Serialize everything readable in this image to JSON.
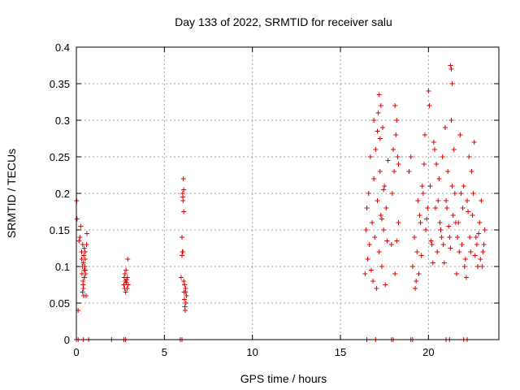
{
  "chart_data": {
    "type": "scatter",
    "title": "Day 133 of 2022, SRMTID for receiver salu",
    "xlabel": "GPS time / hours",
    "ylabel": "SRMTID / TECUs",
    "xlim": [
      0,
      24
    ],
    "ylim": [
      0,
      0.4
    ],
    "xticks": [
      "0",
      "5",
      "10",
      "15",
      "20"
    ],
    "yticks": [
      "0",
      "0.05",
      "0.1",
      "0.15",
      "0.2",
      "0.25",
      "0.3",
      "0.35",
      "0.4"
    ],
    "grid": true,
    "marker": "plus",
    "color": "#dd0000",
    "series": [
      {
        "x": [
          0.02,
          0.04,
          0.1,
          0.15,
          0.2,
          0.25,
          0.3,
          0.3,
          0.32,
          0.34,
          0.36,
          0.38,
          0.4,
          0.4,
          0.42,
          0.42,
          0.44,
          0.45,
          0.46,
          0.48,
          0.5,
          0.5,
          0.52,
          0.55,
          0.58,
          0.6,
          0.35,
          0.38,
          0.45,
          0.5,
          2.7,
          2.72,
          2.74,
          2.76,
          2.78,
          2.8,
          2.82,
          2.84,
          2.86,
          2.88,
          2.9,
          2.92,
          2.94,
          5.95,
          6.0,
          6.0,
          6.02,
          6.04,
          6.06,
          6.08,
          6.1,
          6.12,
          6.14,
          6.16,
          6.18,
          6.2,
          6.22,
          6.25,
          6.05,
          6.1,
          6.15,
          6.2,
          6.1,
          6.05,
          16.4,
          16.45,
          16.5,
          16.55,
          16.6,
          16.65,
          16.7,
          16.75,
          16.8,
          16.85,
          16.9,
          16.95,
          17.0,
          17.05,
          17.1,
          17.15,
          17.2,
          17.25,
          17.3,
          17.35,
          17.4,
          17.45,
          17.5,
          17.55,
          17.6,
          17.65,
          17.7,
          17.2,
          17.3,
          16.9,
          17.1,
          17.25,
          17.35,
          17.45,
          17.9,
          17.95,
          18.0,
          18.05,
          18.1,
          18.15,
          18.2,
          18.25,
          18.3,
          18.1,
          18.2,
          18.3,
          18.9,
          19.0,
          19.1,
          19.2,
          19.3,
          19.4,
          19.5,
          19.6,
          19.7,
          19.8,
          19.9,
          20.0,
          20.1,
          20.2,
          20.3,
          20.4,
          20.5,
          20.6,
          20.7,
          20.8,
          20.9,
          21.0,
          21.1,
          21.2,
          21.3,
          21.4,
          21.5,
          21.6,
          21.7,
          21.8,
          21.9,
          22.0,
          22.1,
          22.2,
          22.3,
          22.4,
          22.5,
          22.6,
          22.7,
          22.8,
          22.9,
          23.0,
          23.1,
          23.2,
          19.25,
          19.45,
          19.65,
          19.85,
          20.05,
          20.25,
          20.45,
          20.65,
          20.85,
          21.05,
          21.25,
          21.45,
          21.65,
          21.85,
          22.05,
          22.25,
          22.45,
          22.65,
          22.85,
          23.05,
          19.35,
          19.55,
          19.75,
          19.95,
          20.15,
          20.35,
          20.55,
          20.75,
          20.95,
          21.15,
          21.35,
          21.55,
          21.75,
          21.95,
          22.15,
          22.35,
          22.55,
          22.75,
          22.95,
          23.15,
          21.25,
          21.3,
          21.35,
          0.0,
          0.1,
          0.4,
          0.7,
          2.0,
          2.7,
          2.8,
          5.9,
          6.0,
          16.5,
          17.0,
          17.9,
          18.0,
          19.0,
          19.1,
          21.0,
          21.2,
          22.0,
          22.2
        ],
        "y": [
          0.19,
          0.165,
          0.04,
          0.135,
          0.14,
          0.155,
          0.11,
          0.12,
          0.09,
          0.1,
          0.13,
          0.08,
          0.105,
          0.07,
          0.115,
          0.06,
          0.095,
          0.125,
          0.085,
          0.1,
          0.11,
          0.12,
          0.09,
          0.06,
          0.13,
          0.145,
          0.065,
          0.075,
          0.085,
          0.095,
          0.075,
          0.085,
          0.07,
          0.09,
          0.08,
          0.065,
          0.095,
          0.078,
          0.082,
          0.07,
          0.085,
          0.11,
          0.075,
          0.085,
          0.14,
          0.115,
          0.12,
          0.2,
          0.19,
          0.22,
          0.175,
          0.065,
          0.055,
          0.045,
          0.04,
          0.07,
          0.05,
          0.06,
          0.195,
          0.205,
          0.075,
          0.065,
          0.08,
          0.12,
          0.09,
          0.15,
          0.18,
          0.11,
          0.2,
          0.13,
          0.25,
          0.095,
          0.16,
          0.08,
          0.22,
          0.14,
          0.26,
          0.07,
          0.19,
          0.31,
          0.12,
          0.23,
          0.17,
          0.1,
          0.29,
          0.15,
          0.21,
          0.075,
          0.18,
          0.135,
          0.245,
          0.335,
          0.32,
          0.3,
          0.285,
          0.275,
          0.165,
          0.205,
          0.13,
          0.2,
          0.26,
          0.23,
          0.32,
          0.28,
          0.3,
          0.25,
          0.24,
          0.09,
          0.135,
          0.16,
          0.23,
          0.25,
          0.1,
          0.14,
          0.08,
          0.19,
          0.17,
          0.115,
          0.2,
          0.28,
          0.165,
          0.34,
          0.21,
          0.13,
          0.27,
          0.18,
          0.12,
          0.22,
          0.15,
          0.25,
          0.105,
          0.19,
          0.23,
          0.14,
          0.3,
          0.17,
          0.2,
          0.09,
          0.16,
          0.28,
          0.13,
          0.21,
          0.11,
          0.19,
          0.25,
          0.12,
          0.17,
          0.27,
          0.14,
          0.1,
          0.16,
          0.19,
          0.12,
          0.15,
          0.07,
          0.09,
          0.21,
          0.15,
          0.32,
          0.105,
          0.24,
          0.16,
          0.13,
          0.18,
          0.125,
          0.26,
          0.14,
          0.2,
          0.1,
          0.175,
          0.23,
          0.115,
          0.145,
          0.1,
          0.12,
          0.16,
          0.24,
          0.18,
          0.135,
          0.26,
          0.19,
          0.14,
          0.29,
          0.155,
          0.21,
          0.16,
          0.12,
          0.18,
          0.085,
          0.14,
          0.2,
          0.13,
          0.11,
          0.13,
          0.375,
          0.37,
          0.35,
          0,
          0,
          0,
          0,
          0,
          0,
          0,
          0,
          0,
          0,
          0,
          0,
          0,
          0,
          0,
          0,
          0,
          0,
          0
        ]
      }
    ]
  }
}
